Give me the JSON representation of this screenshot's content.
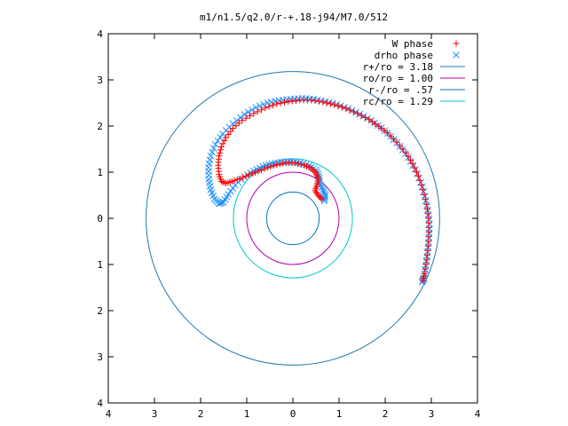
{
  "chart_data": {
    "type": "scatter",
    "title": "m1/n1.5/q2.0/r-+.18-j94/M7.0/512",
    "xlabel": "",
    "ylabel": "",
    "xlim": [
      -4,
      4
    ],
    "ylim": [
      -4,
      4
    ],
    "x_ticks": [
      {
        "value": -4,
        "label": "4"
      },
      {
        "value": -3,
        "label": "3"
      },
      {
        "value": -2,
        "label": "2"
      },
      {
        "value": -1,
        "label": "1"
      },
      {
        "value": 0,
        "label": "0"
      },
      {
        "value": 1,
        "label": "1"
      },
      {
        "value": 2,
        "label": "2"
      },
      {
        "value": 3,
        "label": "3"
      },
      {
        "value": 4,
        "label": "4"
      }
    ],
    "y_ticks": [
      {
        "value": -4,
        "label": "4"
      },
      {
        "value": -3,
        "label": "3"
      },
      {
        "value": -2,
        "label": "2"
      },
      {
        "value": -1,
        "label": "1"
      },
      {
        "value": 0,
        "label": "0"
      },
      {
        "value": 1,
        "label": "1"
      },
      {
        "value": 2,
        "label": "2"
      },
      {
        "value": 3,
        "label": "3"
      },
      {
        "value": 4,
        "label": "4"
      }
    ],
    "grid": false,
    "legend_position": "top-right",
    "series": [
      {
        "name": "W phase",
        "marker": "plus",
        "color": "#ff0000",
        "points": [
          [
            0.62,
            0.42
          ],
          [
            0.55,
            0.5
          ],
          [
            0.48,
            0.6
          ],
          [
            0.52,
            0.72
          ],
          [
            0.55,
            0.85
          ],
          [
            0.5,
            0.98
          ],
          [
            0.4,
            1.08
          ],
          [
            0.25,
            1.15
          ],
          [
            0.05,
            1.2
          ],
          [
            -0.15,
            1.2
          ],
          [
            -0.35,
            1.16
          ],
          [
            -0.55,
            1.1
          ],
          [
            -0.75,
            1.02
          ],
          [
            -0.95,
            0.94
          ],
          [
            -1.15,
            0.86
          ],
          [
            -1.32,
            0.8
          ],
          [
            -1.45,
            0.76
          ],
          [
            -1.55,
            0.8
          ],
          [
            -1.6,
            0.95
          ],
          [
            -1.62,
            1.15
          ],
          [
            -1.6,
            1.35
          ],
          [
            -1.55,
            1.55
          ],
          [
            -1.45,
            1.75
          ],
          [
            -1.3,
            1.95
          ],
          [
            -1.1,
            2.12
          ],
          [
            -0.85,
            2.27
          ],
          [
            -0.6,
            2.39
          ],
          [
            -0.35,
            2.48
          ],
          [
            -0.1,
            2.53
          ],
          [
            0.15,
            2.56
          ],
          [
            0.4,
            2.56
          ],
          [
            0.65,
            2.52
          ],
          [
            0.9,
            2.46
          ],
          [
            1.15,
            2.38
          ],
          [
            1.4,
            2.27
          ],
          [
            1.65,
            2.14
          ],
          [
            1.85,
            2.0
          ],
          [
            2.05,
            1.85
          ],
          [
            2.25,
            1.65
          ],
          [
            2.45,
            1.42
          ],
          [
            2.6,
            1.18
          ],
          [
            2.72,
            0.92
          ],
          [
            2.82,
            0.62
          ],
          [
            2.9,
            0.3
          ],
          [
            2.94,
            0.0
          ],
          [
            2.95,
            -0.3
          ],
          [
            2.93,
            -0.6
          ],
          [
            2.9,
            -0.9
          ],
          [
            2.85,
            -1.2
          ],
          [
            2.82,
            -1.35
          ]
        ]
      },
      {
        "name": "drho phase",
        "marker": "cross",
        "color": "#1e90ff",
        "points": [
          [
            0.68,
            0.38
          ],
          [
            0.7,
            0.5
          ],
          [
            0.65,
            0.62
          ],
          [
            0.58,
            0.78
          ],
          [
            0.56,
            0.92
          ],
          [
            0.5,
            1.05
          ],
          [
            0.35,
            1.14
          ],
          [
            0.15,
            1.2
          ],
          [
            -0.05,
            1.23
          ],
          [
            -0.25,
            1.22
          ],
          [
            -0.45,
            1.18
          ],
          [
            -0.65,
            1.12
          ],
          [
            -0.85,
            1.03
          ],
          [
            -1.05,
            0.9
          ],
          [
            -1.25,
            0.72
          ],
          [
            -1.4,
            0.52
          ],
          [
            -1.5,
            0.35
          ],
          [
            -1.6,
            0.32
          ],
          [
            -1.7,
            0.42
          ],
          [
            -1.78,
            0.62
          ],
          [
            -1.82,
            0.85
          ],
          [
            -1.83,
            1.1
          ],
          [
            -1.78,
            1.35
          ],
          [
            -1.68,
            1.6
          ],
          [
            -1.52,
            1.83
          ],
          [
            -1.3,
            2.05
          ],
          [
            -1.05,
            2.25
          ],
          [
            -0.8,
            2.4
          ],
          [
            -0.55,
            2.5
          ],
          [
            -0.3,
            2.55
          ],
          [
            -0.05,
            2.58
          ],
          [
            0.2,
            2.6
          ],
          [
            0.45,
            2.58
          ],
          [
            0.7,
            2.53
          ],
          [
            0.95,
            2.47
          ],
          [
            1.2,
            2.38
          ],
          [
            1.45,
            2.26
          ],
          [
            1.7,
            2.12
          ],
          [
            1.92,
            1.96
          ],
          [
            2.12,
            1.78
          ],
          [
            2.32,
            1.56
          ],
          [
            2.5,
            1.32
          ],
          [
            2.65,
            1.06
          ],
          [
            2.77,
            0.78
          ],
          [
            2.86,
            0.48
          ],
          [
            2.92,
            0.18
          ],
          [
            2.96,
            -0.12
          ],
          [
            2.95,
            -0.42
          ],
          [
            2.92,
            -0.72
          ],
          [
            2.88,
            -1.02
          ],
          [
            2.84,
            -1.3
          ],
          [
            2.8,
            -1.38
          ]
        ]
      },
      {
        "name": "r+/ro = 3.18",
        "type": "circle",
        "radius": 3.18,
        "color": "#1f77b4"
      },
      {
        "name": "ro/ro = 1.00",
        "type": "circle",
        "radius": 1.0,
        "color": "#b000b0"
      },
      {
        "name": "r-/ro = .57",
        "type": "circle",
        "radius": 0.57,
        "color": "#0070c0"
      },
      {
        "name": "rc/ro = 1.29",
        "type": "circle",
        "radius": 1.29,
        "color": "#00c8c8"
      }
    ]
  }
}
